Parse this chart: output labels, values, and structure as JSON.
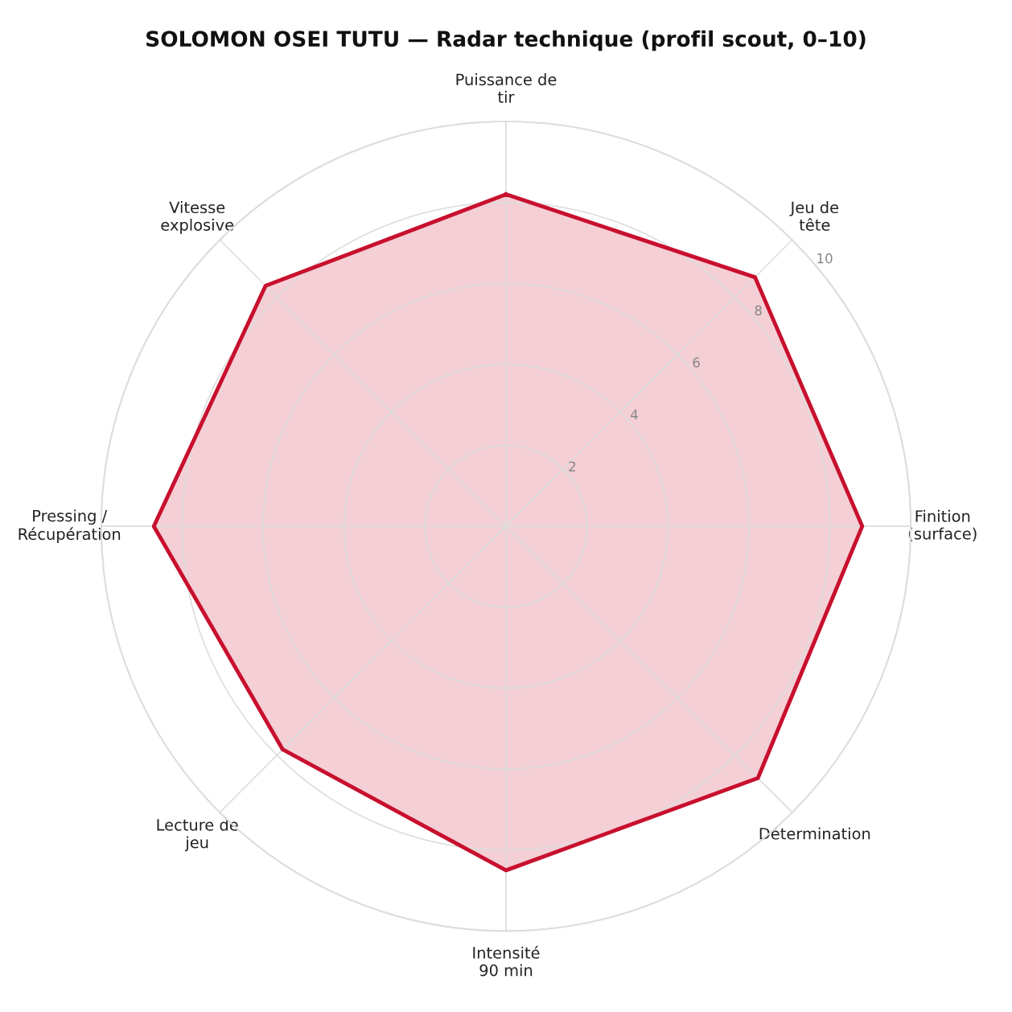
{
  "chart_data": {
    "type": "radar",
    "title": "SOLOMON OSEI TUTU — Radar technique (profil scout, 0–10)",
    "categories": [
      "Puissance de\ntir",
      "Jeu de\ntête",
      "Finition\n(surface)",
      "Détermination",
      "Intensité\n90 min",
      "Lecture de\njeu",
      "Pressing /\nRécupération",
      "Vitesse\nexplosive"
    ],
    "series": [
      {
        "color": "#c8102e",
        "values": [
          8.2,
          8.7,
          8.8,
          8.8,
          8.5,
          7.8,
          8.7,
          8.4
        ]
      }
    ],
    "ylim": [
      0,
      10
    ],
    "yticks": [
      2,
      4,
      6,
      8,
      10
    ],
    "grid": true,
    "marker": "none",
    "line_style": "solid"
  }
}
